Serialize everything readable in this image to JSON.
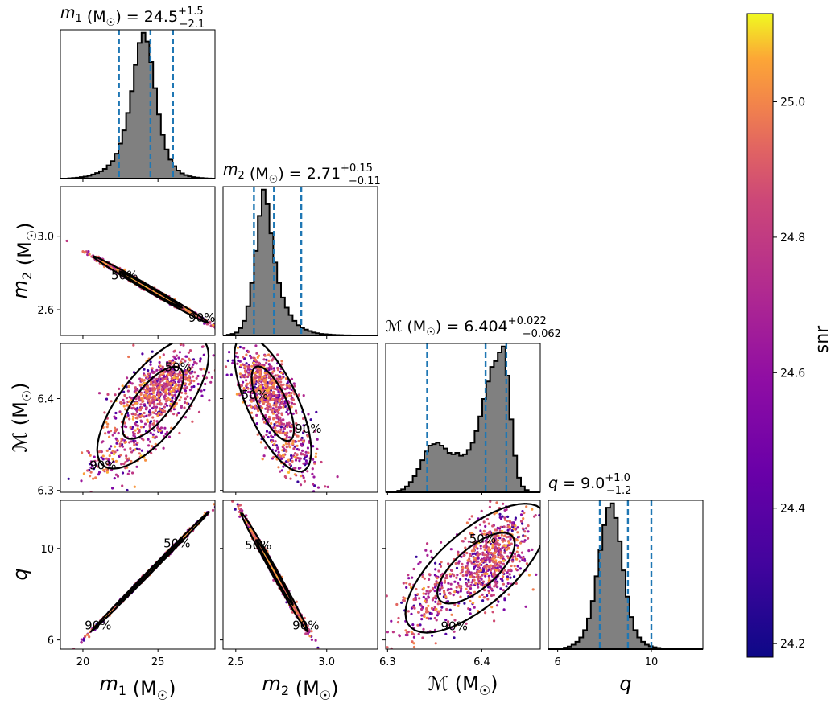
{
  "chart_data": {
    "type": "corner",
    "color_metric": "snr",
    "parameters": [
      {
        "key": "m1",
        "symbol": "m",
        "sub": "1",
        "unit": " (M",
        "unit_sub": "☉",
        "unit_close": ")",
        "median": "24.5",
        "plus": "+1.5",
        "minus": "−2.1",
        "median_value": 24.5,
        "q_lo": 22.4,
        "q_hi": 26.0,
        "range": [
          18.5,
          28.8
        ],
        "ticks": [
          "20",
          "25"
        ],
        "tick_values": [
          20,
          25
        ]
      },
      {
        "key": "m2",
        "symbol": "m",
        "sub": "2",
        "unit": " (M",
        "unit_sub": "☉",
        "unit_close": ")",
        "median": "2.71",
        "plus": "+0.15",
        "minus": "−0.11",
        "median_value": 2.71,
        "q_lo": 2.6,
        "q_hi": 2.86,
        "range": [
          2.43,
          3.28
        ],
        "ticks": [
          "2.5",
          "3.0"
        ],
        "tick_values": [
          2.5,
          3.0
        ],
        "ylabel_ticks": [
          "3.0",
          "2.6"
        ],
        "ylabel_tick_values": [
          3.0,
          2.6
        ],
        "ylim": [
          2.46,
          3.27
        ]
      },
      {
        "key": "mc",
        "symbol": "ℳ",
        "sub": "",
        "unit": " (M",
        "unit_sub": "☉",
        "unit_close": ")",
        "median": "6.404",
        "plus": "+0.022",
        "minus": "−0.062",
        "median_value": 6.404,
        "q_lo": 6.342,
        "q_hi": 6.426,
        "range": [
          6.298,
          6.462
        ],
        "ticks": [
          "6.3",
          "6.4"
        ],
        "tick_values": [
          6.3,
          6.4
        ],
        "ylabel_ticks": [
          "6.4",
          "6.3"
        ],
        "ylabel_tick_values": [
          6.4,
          6.3
        ],
        "ylim": [
          6.298,
          6.46
        ]
      },
      {
        "key": "q",
        "symbol": "q",
        "sub": "",
        "unit": "",
        "unit_sub": "",
        "unit_close": "",
        "median": "9.0",
        "plus": "+1.0",
        "minus": "−1.2",
        "median_value": 9.0,
        "q_lo": 7.8,
        "q_hi": 10.0,
        "range": [
          5.6,
          12.2
        ],
        "ticks": [
          "6",
          "10"
        ],
        "tick_values": [
          6,
          10
        ],
        "ylabel_ticks": [
          "10",
          "6"
        ],
        "ylabel_tick_values": [
          10,
          6
        ],
        "ylim": [
          5.6,
          12.1
        ]
      }
    ],
    "histograms": {
      "m1": [
        0,
        0,
        0.002,
        0.004,
        0.006,
        0.01,
        0.014,
        0.02,
        0.028,
        0.038,
        0.05,
        0.066,
        0.09,
        0.12,
        0.17,
        0.24,
        0.33,
        0.45,
        0.6,
        0.78,
        0.93,
        1.0,
        0.94,
        0.8,
        0.62,
        0.44,
        0.3,
        0.2,
        0.13,
        0.085,
        0.055,
        0.036,
        0.024,
        0.016,
        0.01,
        0.007,
        0.004,
        0.002,
        0.001,
        0
      ],
      "m2": [
        0,
        0.005,
        0.01,
        0.02,
        0.05,
        0.1,
        0.2,
        0.36,
        0.58,
        0.82,
        1.0,
        0.9,
        0.7,
        0.5,
        0.36,
        0.26,
        0.19,
        0.14,
        0.1,
        0.07,
        0.05,
        0.04,
        0.03,
        0.02,
        0.015,
        0.01,
        0.008,
        0.006,
        0.004,
        0.003,
        0.002,
        0.001,
        0.001,
        0,
        0,
        0,
        0,
        0,
        0,
        0
      ],
      "mc": [
        0,
        0,
        0.005,
        0.01,
        0.02,
        0.04,
        0.07,
        0.11,
        0.16,
        0.22,
        0.28,
        0.32,
        0.33,
        0.34,
        0.32,
        0.3,
        0.27,
        0.26,
        0.27,
        0.25,
        0.26,
        0.29,
        0.34,
        0.42,
        0.52,
        0.64,
        0.76,
        0.86,
        0.9,
        0.96,
        1.0,
        0.8,
        0.5,
        0.25,
        0.1,
        0.04,
        0.015,
        0.005,
        0,
        0
      ],
      "q": [
        0,
        0,
        0.002,
        0.005,
        0.01,
        0.018,
        0.03,
        0.05,
        0.08,
        0.13,
        0.21,
        0.33,
        0.5,
        0.68,
        0.85,
        0.97,
        1.0,
        0.9,
        0.74,
        0.54,
        0.36,
        0.22,
        0.13,
        0.08,
        0.05,
        0.03,
        0.02,
        0.013,
        0.008,
        0.005,
        0.003,
        0.002,
        0.001,
        0,
        0,
        0,
        0,
        0,
        0,
        0
      ]
    },
    "contour_labels": [
      "50%",
      "90%"
    ],
    "colorbar": {
      "label": "snr",
      "ticks": [
        "25.0",
        "24.8",
        "24.6",
        "24.4",
        "24.2"
      ],
      "tick_values": [
        25.0,
        24.8,
        24.6,
        24.4,
        24.2
      ],
      "range": [
        24.18,
        25.13
      ],
      "colormap": "plasma"
    },
    "colors": {
      "hist_fill": "#808080",
      "hist_edge": "#000000",
      "quantile_line": "#1f77b4",
      "contour": "#000000"
    }
  }
}
